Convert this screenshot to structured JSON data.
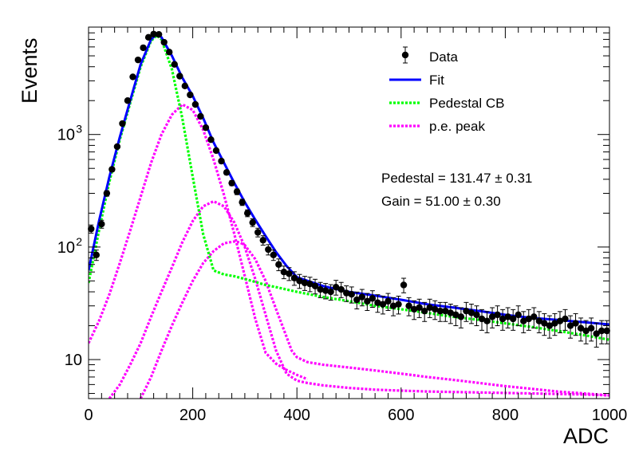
{
  "chart_data": {
    "type": "scatter",
    "title": "",
    "xlabel": "ADC",
    "ylabel": "Events",
    "xlim": [
      0,
      1000
    ],
    "ylim": [
      4.5,
      9000
    ],
    "ylog": true,
    "grid": false,
    "legend_position": "top-right",
    "x_ticks": [
      0,
      200,
      400,
      600,
      800,
      1000
    ],
    "x_tick_labels": [
      "0",
      "200",
      "400",
      "600",
      "800",
      "1000"
    ],
    "y_ticks": [
      10,
      100,
      1000
    ],
    "y_tick_labels": [
      "10",
      "10²",
      "10³"
    ],
    "legend": [
      {
        "label": "Data",
        "kind": "marker",
        "color": "#000000"
      },
      {
        "label": "Fit",
        "kind": "line",
        "color": "#0000ff"
      },
      {
        "label": "Pedestal CB",
        "kind": "dotted",
        "color": "#00ff00"
      },
      {
        "label": "p.e. peak",
        "kind": "dotted",
        "color": "#ff00ff"
      }
    ],
    "annotations": [
      "Pedestal = 131.47 ± 0.31",
      "Gain = 51.00 ± 0.30"
    ],
    "data_points": {
      "name": "Data",
      "color": "#000000",
      "x": [
        5,
        15,
        25,
        35,
        45,
        55,
        65,
        75,
        85,
        95,
        105,
        115,
        125,
        135,
        145,
        155,
        165,
        175,
        185,
        195,
        205,
        215,
        225,
        235,
        245,
        255,
        265,
        275,
        285,
        295,
        305,
        315,
        325,
        335,
        345,
        355,
        365,
        375,
        385,
        395,
        405,
        415,
        425,
        435,
        445,
        455,
        465,
        475,
        485,
        495,
        505,
        515,
        525,
        535,
        545,
        555,
        565,
        575,
        585,
        595,
        605,
        615,
        625,
        635,
        645,
        655,
        665,
        675,
        685,
        695,
        705,
        715,
        725,
        735,
        745,
        755,
        765,
        775,
        785,
        795,
        805,
        815,
        825,
        835,
        845,
        855,
        865,
        875,
        885,
        895,
        905,
        915,
        925,
        935,
        945,
        955,
        965,
        975,
        985,
        995
      ],
      "y": [
        145,
        85,
        160,
        300,
        490,
        780,
        1250,
        2000,
        3250,
        4600,
        5900,
        7300,
        7800,
        7750,
        6600,
        5400,
        4200,
        3300,
        2700,
        2250,
        1850,
        1450,
        1150,
        900,
        720,
        580,
        460,
        370,
        310,
        250,
        200,
        165,
        135,
        115,
        95,
        85,
        70,
        60,
        58,
        53,
        50,
        48,
        47,
        45,
        42,
        41,
        40,
        44,
        42,
        39,
        38,
        34,
        36,
        33,
        35,
        32,
        31,
        33,
        30,
        31,
        46,
        30,
        28,
        29,
        27,
        29,
        28,
        27,
        27,
        26,
        25,
        24,
        27,
        26,
        25,
        23,
        22,
        24,
        25,
        23,
        24,
        23,
        25,
        22,
        23,
        24,
        22,
        21,
        20,
        21,
        22,
        23,
        20,
        21,
        19,
        18,
        19,
        17,
        18,
        18
      ],
      "err": [
        12,
        9,
        13,
        17,
        22,
        28,
        35,
        45,
        57,
        68,
        77,
        85,
        88,
        88,
        81,
        73,
        65,
        57,
        52,
        47,
        43,
        38,
        34,
        30,
        27,
        24,
        21,
        19,
        18,
        16,
        14,
        13,
        12,
        11,
        10,
        9,
        8.4,
        7.7,
        7.6,
        7.3,
        7.1,
        6.9,
        6.9,
        6.7,
        6.5,
        6.4,
        6.3,
        6.6,
        6.5,
        6.2,
        6.2,
        5.8,
        6,
        5.7,
        5.9,
        5.7,
        5.6,
        5.7,
        5.5,
        5.6,
        6.8,
        5.5,
        5.3,
        5.4,
        5.2,
        5.4,
        5.3,
        5.2,
        5.2,
        5.1,
        5,
        4.9,
        5.2,
        5.1,
        5,
        4.8,
        4.7,
        4.9,
        5,
        4.8,
        4.9,
        4.8,
        5,
        4.7,
        4.8,
        4.9,
        4.7,
        4.6,
        4.5,
        4.6,
        4.7,
        4.8,
        4.5,
        4.6,
        4.4,
        4.2,
        4.4,
        4.1,
        4.2,
        4.2
      ]
    },
    "series": [
      {
        "name": "Fit",
        "color": "#0000ff",
        "style": "solid",
        "x": [
          0,
          20,
          40,
          60,
          80,
          100,
          120,
          131,
          140,
          160,
          180,
          200,
          220,
          240,
          260,
          280,
          300,
          320,
          340,
          360,
          380,
          400,
          450,
          500,
          550,
          600,
          650,
          700,
          750,
          800,
          850,
          900,
          950,
          1000
        ],
        "y": [
          62,
          170,
          420,
          950,
          2000,
          4200,
          7000,
          7800,
          7300,
          5000,
          3200,
          2200,
          1400,
          850,
          560,
          370,
          250,
          175,
          125,
          90,
          68,
          54,
          45,
          40,
          37,
          34,
          31,
          29,
          27,
          25,
          23.5,
          22.5,
          21.5,
          20.5
        ]
      },
      {
        "name": "Pedestal CB",
        "color": "#00ff00",
        "style": "dotted",
        "x": [
          0,
          20,
          40,
          60,
          80,
          100,
          120,
          131,
          140,
          160,
          180,
          200,
          220,
          240,
          260,
          280,
          300,
          320,
          340,
          360,
          380,
          400,
          450,
          500,
          550,
          600,
          650,
          700,
          750,
          800,
          850,
          900,
          950,
          1000
        ],
        "y": [
          48,
          140,
          380,
          900,
          1900,
          4000,
          6800,
          7600,
          7000,
          3800,
          1400,
          420,
          130,
          62,
          57,
          55,
          52,
          49,
          46,
          44,
          42,
          40,
          36,
          33,
          30,
          28,
          26,
          24,
          22.5,
          21,
          19.5,
          18,
          16.5,
          15
        ]
      },
      {
        "name": "p.e. peak",
        "color": "#ff00ff",
        "style": "dotted",
        "x": [
          0,
          20,
          40,
          60,
          80,
          100,
          120,
          140,
          160,
          180,
          200,
          220,
          240,
          260,
          280,
          300,
          320,
          340,
          360,
          380,
          400,
          420
        ],
        "y": [
          14,
          22,
          38,
          72,
          140,
          280,
          560,
          1000,
          1500,
          1850,
          1650,
          1100,
          600,
          290,
          130,
          55,
          23,
          11.5,
          9.2,
          8.1,
          7.3,
          6.7
        ]
      },
      {
        "name": "p.e. peak",
        "color": "#ff00ff",
        "style": "dotted",
        "x": [
          40,
          60,
          80,
          100,
          120,
          140,
          160,
          180,
          200,
          220,
          240,
          260,
          280,
          300,
          320,
          340,
          360,
          380,
          400,
          420,
          450,
          500,
          550,
          600,
          650,
          700,
          750,
          800,
          850,
          900,
          950,
          1000
        ],
        "y": [
          4.5,
          6,
          9,
          14,
          24,
          40,
          66,
          110,
          170,
          230,
          255,
          230,
          165,
          100,
          52,
          25,
          12,
          7.5,
          6.5,
          6.2,
          5.9,
          5.6,
          5.4,
          5.3,
          5.2,
          5.15,
          5.1,
          5.05,
          5,
          4.95,
          4.9,
          4.8
        ]
      },
      {
        "name": "p.e. peak",
        "color": "#ff00ff",
        "style": "dotted",
        "x": [
          100,
          120,
          140,
          160,
          180,
          200,
          220,
          240,
          260,
          280,
          290,
          300,
          320,
          340,
          360,
          380,
          390,
          400,
          420,
          450,
          500,
          550,
          600,
          650,
          700,
          750,
          800,
          850,
          900,
          950,
          1000
        ],
        "y": [
          4.5,
          7,
          12,
          20,
          32,
          50,
          72,
          92,
          108,
          112,
          110,
          104,
          78,
          50,
          28,
          16,
          12,
          10.5,
          9.5,
          9,
          8.5,
          8,
          7.5,
          7,
          6.6,
          6.2,
          5.8,
          5.5,
          5.2,
          5,
          4.8
        ]
      }
    ]
  }
}
